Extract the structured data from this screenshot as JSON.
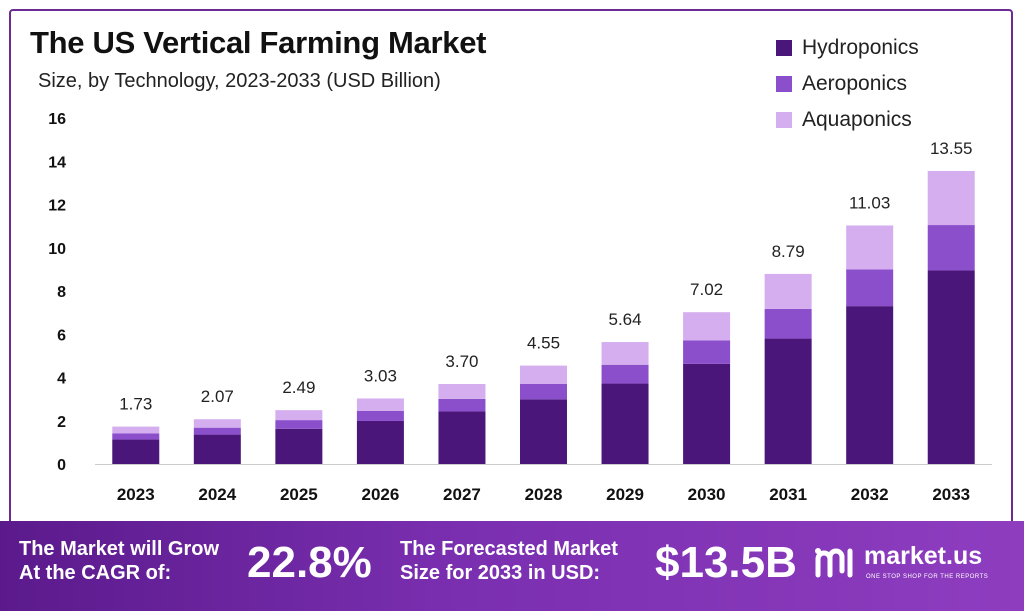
{
  "title": "The US Vertical Farming Market",
  "subtitle": "Size, by Technology, 2023-2033 (USD Billion)",
  "colors": {
    "hydroponics": "#4b1679",
    "aeroponics": "#8c4fcc",
    "aquaponics": "#d4aeee",
    "footer": "#6a249e"
  },
  "chart_data": {
    "type": "bar",
    "stacked": true,
    "categories": [
      "2023",
      "2024",
      "2025",
      "2026",
      "2027",
      "2028",
      "2029",
      "2030",
      "2031",
      "2032",
      "2033"
    ],
    "series": [
      {
        "name": "Hydroponics",
        "values": [
          1.13,
          1.36,
          1.63,
          1.99,
          2.43,
          2.99,
          3.72,
          4.63,
          5.8,
          7.3,
          8.95
        ]
      },
      {
        "name": "Aeroponics",
        "values": [
          0.28,
          0.32,
          0.4,
          0.47,
          0.58,
          0.72,
          0.87,
          1.09,
          1.37,
          1.7,
          2.1
        ]
      },
      {
        "name": "Aquaponics",
        "values": [
          0.32,
          0.39,
          0.46,
          0.57,
          0.69,
          0.84,
          1.05,
          1.3,
          1.62,
          2.03,
          2.5
        ]
      }
    ],
    "totals": [
      "1.73",
      "2.07",
      "2.49",
      "3.03",
      "3.70",
      "4.55",
      "5.64",
      "7.02",
      "8.79",
      "11.03",
      "13.55"
    ],
    "yticks": [
      "0",
      "2",
      "4",
      "6",
      "8",
      "10",
      "12",
      "14",
      "16"
    ],
    "ylim": [
      0,
      16
    ],
    "legend_position": "top-right",
    "grid": false
  },
  "footer": {
    "cagr_label_line1": "The Market will Grow",
    "cagr_label_line2": "At the CAGR of:",
    "cagr_value": "22.8%",
    "forecast_label_line1": "The Forecasted Market",
    "forecast_label_line2": "Size for 2033 in USD:",
    "forecast_value": "$13.5B",
    "logo_text": "market.us",
    "logo_tagline": "ONE STOP SHOP FOR THE REPORTS",
    "logo_icon": "market-us-logo-icon"
  }
}
